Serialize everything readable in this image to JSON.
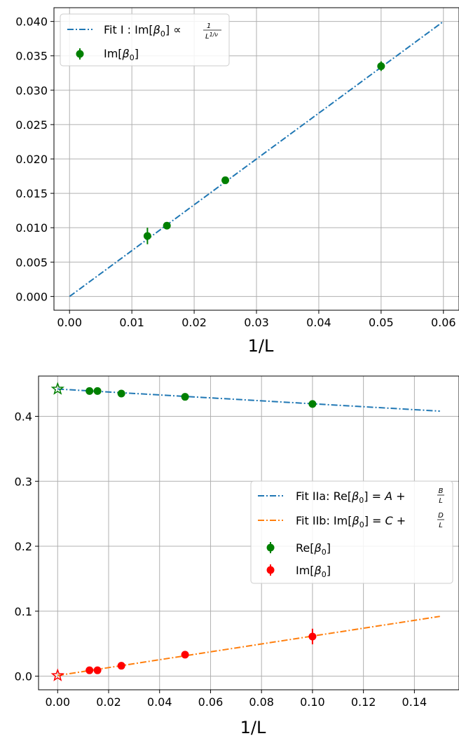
{
  "chart_data": [
    {
      "type": "scatter",
      "xlabel": "1/L",
      "ylabel": "",
      "xlim": [
        -0.0025,
        0.0625
      ],
      "ylim": [
        -0.002,
        0.042
      ],
      "xticks": [
        "0.00",
        "0.01",
        "0.02",
        "0.03",
        "0.04",
        "0.05",
        "0.06"
      ],
      "yticks": [
        "0.000",
        "0.005",
        "0.010",
        "0.015",
        "0.020",
        "0.025",
        "0.030",
        "0.035",
        "0.040"
      ],
      "grid": true,
      "legend_position": "top-left",
      "series": [
        {
          "name": "Fit I : Im[β0] ∝ 1/L^{1/ν}",
          "kind": "dash-dot line",
          "color": "#1f77b4",
          "x": [
            0.0,
            0.06
          ],
          "y": [
            0.0,
            0.04
          ]
        },
        {
          "name": "Im[β0]",
          "kind": "points with error bars",
          "color": "#008000",
          "x": [
            0.0125,
            0.015625,
            0.025,
            0.05
          ],
          "y": [
            0.0088,
            0.0103,
            0.0169,
            0.0335
          ],
          "yerr": [
            0.0012,
            0.0004,
            0.0003,
            0.0007
          ]
        }
      ]
    },
    {
      "type": "scatter",
      "xlabel": "1/L",
      "ylabel": "",
      "xlim": [
        -0.0075,
        0.1575
      ],
      "ylim": [
        -0.021,
        0.462
      ],
      "xticks": [
        "0.00",
        "0.02",
        "0.04",
        "0.06",
        "0.08",
        "0.10",
        "0.12",
        "0.14"
      ],
      "yticks": [
        "0.0",
        "0.1",
        "0.2",
        "0.3",
        "0.4"
      ],
      "grid": true,
      "legend_position": "center-right",
      "series": [
        {
          "name": "Fit IIa: Re[β0] = A + B/L",
          "kind": "dash-dot line",
          "color": "#1f77b4",
          "x": [
            0.0,
            0.15
          ],
          "y": [
            0.442,
            0.408
          ]
        },
        {
          "name": "Fit IIb: Im[β0] = C + D/L",
          "kind": "dash-dot line",
          "color": "#ff7f0e",
          "x": [
            0.0,
            0.15
          ],
          "y": [
            0.001,
            0.092
          ]
        },
        {
          "name": "Re[β0]",
          "kind": "points with error bars",
          "color": "#008000",
          "x": [
            0.0125,
            0.015625,
            0.025,
            0.05,
            0.1
          ],
          "y": [
            0.439,
            0.439,
            0.435,
            0.43,
            0.419
          ],
          "yerr": [
            0.002,
            0.002,
            0.002,
            0.002,
            0.003
          ]
        },
        {
          "name": "Im[β0]",
          "kind": "points with error bars",
          "color": "#ff0000",
          "x": [
            0.0125,
            0.015625,
            0.025,
            0.05,
            0.1
          ],
          "y": [
            0.009,
            0.009,
            0.016,
            0.033,
            0.061
          ],
          "yerr": [
            0.002,
            0.002,
            0.002,
            0.003,
            0.012
          ]
        },
        {
          "name": "",
          "kind": "star markers (extrapolated)",
          "points": [
            {
              "x": 0.0,
              "y": 0.442,
              "color": "#008000"
            },
            {
              "x": 0.0,
              "y": 0.001,
              "color": "#ff0000"
            }
          ]
        }
      ]
    }
  ],
  "legend_text": {
    "top": {
      "fit_prefix": "Fit I : Im[",
      "beta": "β",
      "sub": "0",
      "fit_suffix": "]  ∝",
      "frac_num": "1",
      "frac_den": "L",
      "frac_den_exp": "1/ν",
      "data_prefix": "Im[",
      "data_suffix": "]"
    },
    "bottom": {
      "fit_a_prefix": "Fit IIa: Re[",
      "fit_a_mid": "] = ",
      "fit_a_A": "A",
      "fit_a_plus": " + ",
      "fit_a_num": "B",
      "fit_a_den": "L",
      "fit_b_prefix": "Fit IIb: Im[",
      "fit_b_mid": "] = ",
      "fit_b_C": "C",
      "fit_b_plus": " + ",
      "fit_b_num": "D",
      "fit_b_den": "L",
      "re_prefix": "Re[",
      "im_prefix": "Im[",
      "beta": "β",
      "sub": "0",
      "close": "]"
    }
  },
  "colors": {
    "fit_blue": "#1f77b4",
    "fit_orange": "#ff7f0e",
    "green": "#008000",
    "red": "#ff0000",
    "grid": "#b0b0b0"
  }
}
